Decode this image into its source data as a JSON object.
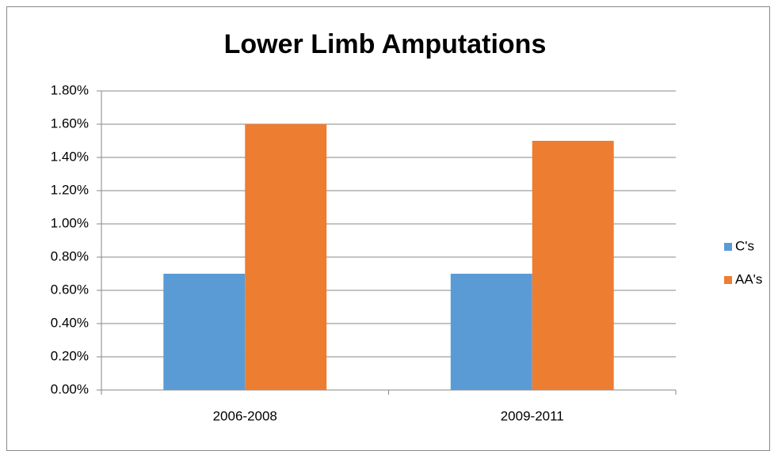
{
  "chart_data": {
    "type": "bar",
    "title": "Lower Limb Amputations",
    "categories": [
      "2006-2008",
      "2009-2011"
    ],
    "series": [
      {
        "name": "C's",
        "color": "#5b9bd5",
        "values": [
          0.7,
          0.7
        ]
      },
      {
        "name": "AA's",
        "color": "#ed7d31",
        "values": [
          1.6,
          1.5
        ]
      }
    ],
    "ylim": [
      0,
      1.8
    ],
    "yticks": [
      {
        "value": 0,
        "label": "0.00%"
      },
      {
        "value": 0.2,
        "label": "0.20%"
      },
      {
        "value": 0.4,
        "label": "0.40%"
      },
      {
        "value": 0.6,
        "label": "0.60%"
      },
      {
        "value": 0.8,
        "label": "0.80%"
      },
      {
        "value": 1.0,
        "label": "1.00%"
      },
      {
        "value": 1.2,
        "label": "1.20%"
      },
      {
        "value": 1.4,
        "label": "1.40%"
      },
      {
        "value": 1.6,
        "label": "1.60%"
      },
      {
        "value": 1.8,
        "label": "1.80%"
      }
    ],
    "grid": true,
    "legend": "right"
  }
}
